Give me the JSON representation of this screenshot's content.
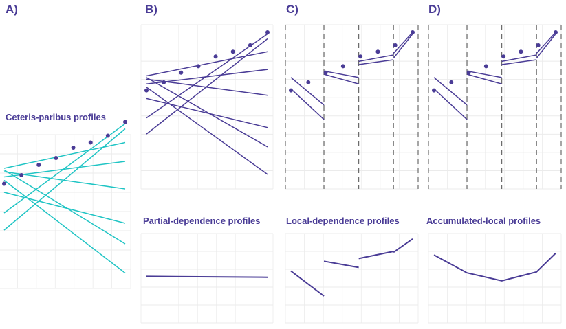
{
  "colors": {
    "profile_purple": "#4a3c96",
    "cp_teal": "#1fc4c4",
    "grid": "#ebebeb",
    "cut_dash": "#6b6b6b"
  },
  "panels": {
    "a": {
      "letter": "A)",
      "title": "Ceteris-paribus profiles"
    },
    "b": {
      "letter": "B)",
      "title": "Partial-dependence profiles"
    },
    "c": {
      "letter": "C)",
      "title": "Local-dependence profiles"
    },
    "d": {
      "letter": "D)",
      "title": "Accumulated-local profiles"
    }
  },
  "chart_data": [
    {
      "type": "line",
      "panel": "A",
      "description_of_content": "ceteris-paribus lines for 8 observations",
      "x_range": [
        0,
        7
      ],
      "y_range": [
        0,
        10
      ],
      "observations": [
        {
          "x": 0,
          "y": 6.1
        },
        {
          "x": 1,
          "y": 6.6
        },
        {
          "x": 2,
          "y": 7.2
        },
        {
          "x": 3,
          "y": 7.6
        },
        {
          "x": 4,
          "y": 8.2
        },
        {
          "x": 5,
          "y": 8.5
        },
        {
          "x": 6,
          "y": 8.9
        },
        {
          "x": 7,
          "y": 9.7
        }
      ],
      "lines": [
        {
          "y0": 6.9,
          "y1": 2.6
        },
        {
          "y0": 6.8,
          "y1": 5.8
        },
        {
          "y0": 7.0,
          "y1": 8.5
        },
        {
          "y0": 6.5,
          "y1": 7.4
        },
        {
          "y0": 5.6,
          "y1": 3.8
        },
        {
          "y0": 4.4,
          "y1": 9.6
        },
        {
          "y0": 3.4,
          "y1": 9.3
        },
        {
          "y0": 6.3,
          "y1": 0.9
        }
      ]
    },
    {
      "type": "line",
      "panel": "B",
      "description_of_content": "ceteris-paribus lines plus flat partial-dependence profile",
      "x_range": [
        0,
        7
      ],
      "y_range": [
        0,
        10
      ],
      "observations": [
        {
          "x": 0,
          "y": 6.1
        },
        {
          "x": 1,
          "y": 6.6
        },
        {
          "x": 2,
          "y": 7.2
        },
        {
          "x": 3,
          "y": 7.6
        },
        {
          "x": 4,
          "y": 8.2
        },
        {
          "x": 5,
          "y": 8.5
        },
        {
          "x": 6,
          "y": 8.9
        },
        {
          "x": 7,
          "y": 9.7
        }
      ],
      "lines": [
        {
          "y0": 6.9,
          "y1": 2.6
        },
        {
          "y0": 6.8,
          "y1": 5.8
        },
        {
          "y0": 7.0,
          "y1": 8.5
        },
        {
          "y0": 6.5,
          "y1": 7.4
        },
        {
          "y0": 5.6,
          "y1": 3.8
        },
        {
          "y0": 4.4,
          "y1": 9.6
        },
        {
          "y0": 3.4,
          "y1": 9.3
        },
        {
          "y0": 6.3,
          "y1": 0.9
        }
      ],
      "profile": [
        {
          "x": 0,
          "y": 5.2
        },
        {
          "x": 7,
          "y": 5.1
        }
      ]
    },
    {
      "type": "line",
      "panel": "C",
      "description_of_content": "local-dependence: piecewise local segments inside intervals",
      "x_range": [
        0,
        7
      ],
      "y_range": [
        0,
        10
      ],
      "cuts": [
        1.9,
        3.9,
        5.9
      ],
      "observations": [
        {
          "x": 0,
          "y": 6.1
        },
        {
          "x": 1,
          "y": 6.6
        },
        {
          "x": 2,
          "y": 7.2
        },
        {
          "x": 3,
          "y": 7.6
        },
        {
          "x": 4,
          "y": 8.2
        },
        {
          "x": 5,
          "y": 8.5
        },
        {
          "x": 6,
          "y": 8.9
        },
        {
          "x": 7,
          "y": 9.7
        }
      ],
      "segments": [
        {
          "x0": 0.0,
          "y0": 6.9,
          "x1": 1.9,
          "y1": 5.2
        },
        {
          "x0": 0.0,
          "y0": 6.2,
          "x1": 1.9,
          "y1": 4.3
        },
        {
          "x0": 1.9,
          "y0": 7.3,
          "x1": 3.9,
          "y1": 6.9
        },
        {
          "x0": 1.9,
          "y0": 7.1,
          "x1": 3.9,
          "y1": 6.5
        },
        {
          "x0": 3.9,
          "y0": 7.9,
          "x1": 5.9,
          "y1": 8.3
        },
        {
          "x0": 3.9,
          "y0": 7.7,
          "x1": 5.9,
          "y1": 8.0
        },
        {
          "x0": 5.9,
          "y0": 8.4,
          "x1": 7.0,
          "y1": 9.7
        },
        {
          "x0": 5.9,
          "y0": 8.1,
          "x1": 7.0,
          "y1": 9.6
        }
      ],
      "profile_segments": [
        {
          "x0": 0.0,
          "y0": 5.8,
          "x1": 1.9,
          "y1": 3.0
        },
        {
          "x0": 1.9,
          "y0": 6.9,
          "x1": 3.9,
          "y1": 6.2
        },
        {
          "x0": 3.9,
          "y0": 7.2,
          "x1": 5.9,
          "y1": 8.0
        },
        {
          "x0": 5.9,
          "y0": 7.9,
          "x1": 7.0,
          "y1": 9.4
        }
      ]
    },
    {
      "type": "line",
      "panel": "D",
      "description_of_content": "accumulated-local: local segments plus accumulated profile",
      "x_range": [
        0,
        7
      ],
      "y_range": [
        0,
        10
      ],
      "cuts": [
        1.9,
        3.9,
        5.9
      ],
      "observations": [
        {
          "x": 0,
          "y": 6.1
        },
        {
          "x": 1,
          "y": 6.6
        },
        {
          "x": 2,
          "y": 7.2
        },
        {
          "x": 3,
          "y": 7.6
        },
        {
          "x": 4,
          "y": 8.2
        },
        {
          "x": 5,
          "y": 8.5
        },
        {
          "x": 6,
          "y": 8.9
        },
        {
          "x": 7,
          "y": 9.7
        }
      ],
      "segments": [
        {
          "x0": 0.0,
          "y0": 6.9,
          "x1": 1.9,
          "y1": 5.2
        },
        {
          "x0": 0.0,
          "y0": 6.2,
          "x1": 1.9,
          "y1": 4.3
        },
        {
          "x0": 1.9,
          "y0": 7.3,
          "x1": 3.9,
          "y1": 6.9
        },
        {
          "x0": 1.9,
          "y0": 7.1,
          "x1": 3.9,
          "y1": 6.5
        },
        {
          "x0": 3.9,
          "y0": 7.9,
          "x1": 5.9,
          "y1": 8.3
        },
        {
          "x0": 3.9,
          "y0": 7.7,
          "x1": 5.9,
          "y1": 8.0
        },
        {
          "x0": 5.9,
          "y0": 8.4,
          "x1": 7.0,
          "y1": 9.7
        },
        {
          "x0": 5.9,
          "y0": 8.1,
          "x1": 7.0,
          "y1": 9.6
        }
      ],
      "profile": [
        {
          "x": 0.0,
          "y": 7.6
        },
        {
          "x": 1.9,
          "y": 5.6
        },
        {
          "x": 3.9,
          "y": 4.7
        },
        {
          "x": 5.9,
          "y": 5.7
        },
        {
          "x": 7.0,
          "y": 7.8
        }
      ]
    }
  ]
}
